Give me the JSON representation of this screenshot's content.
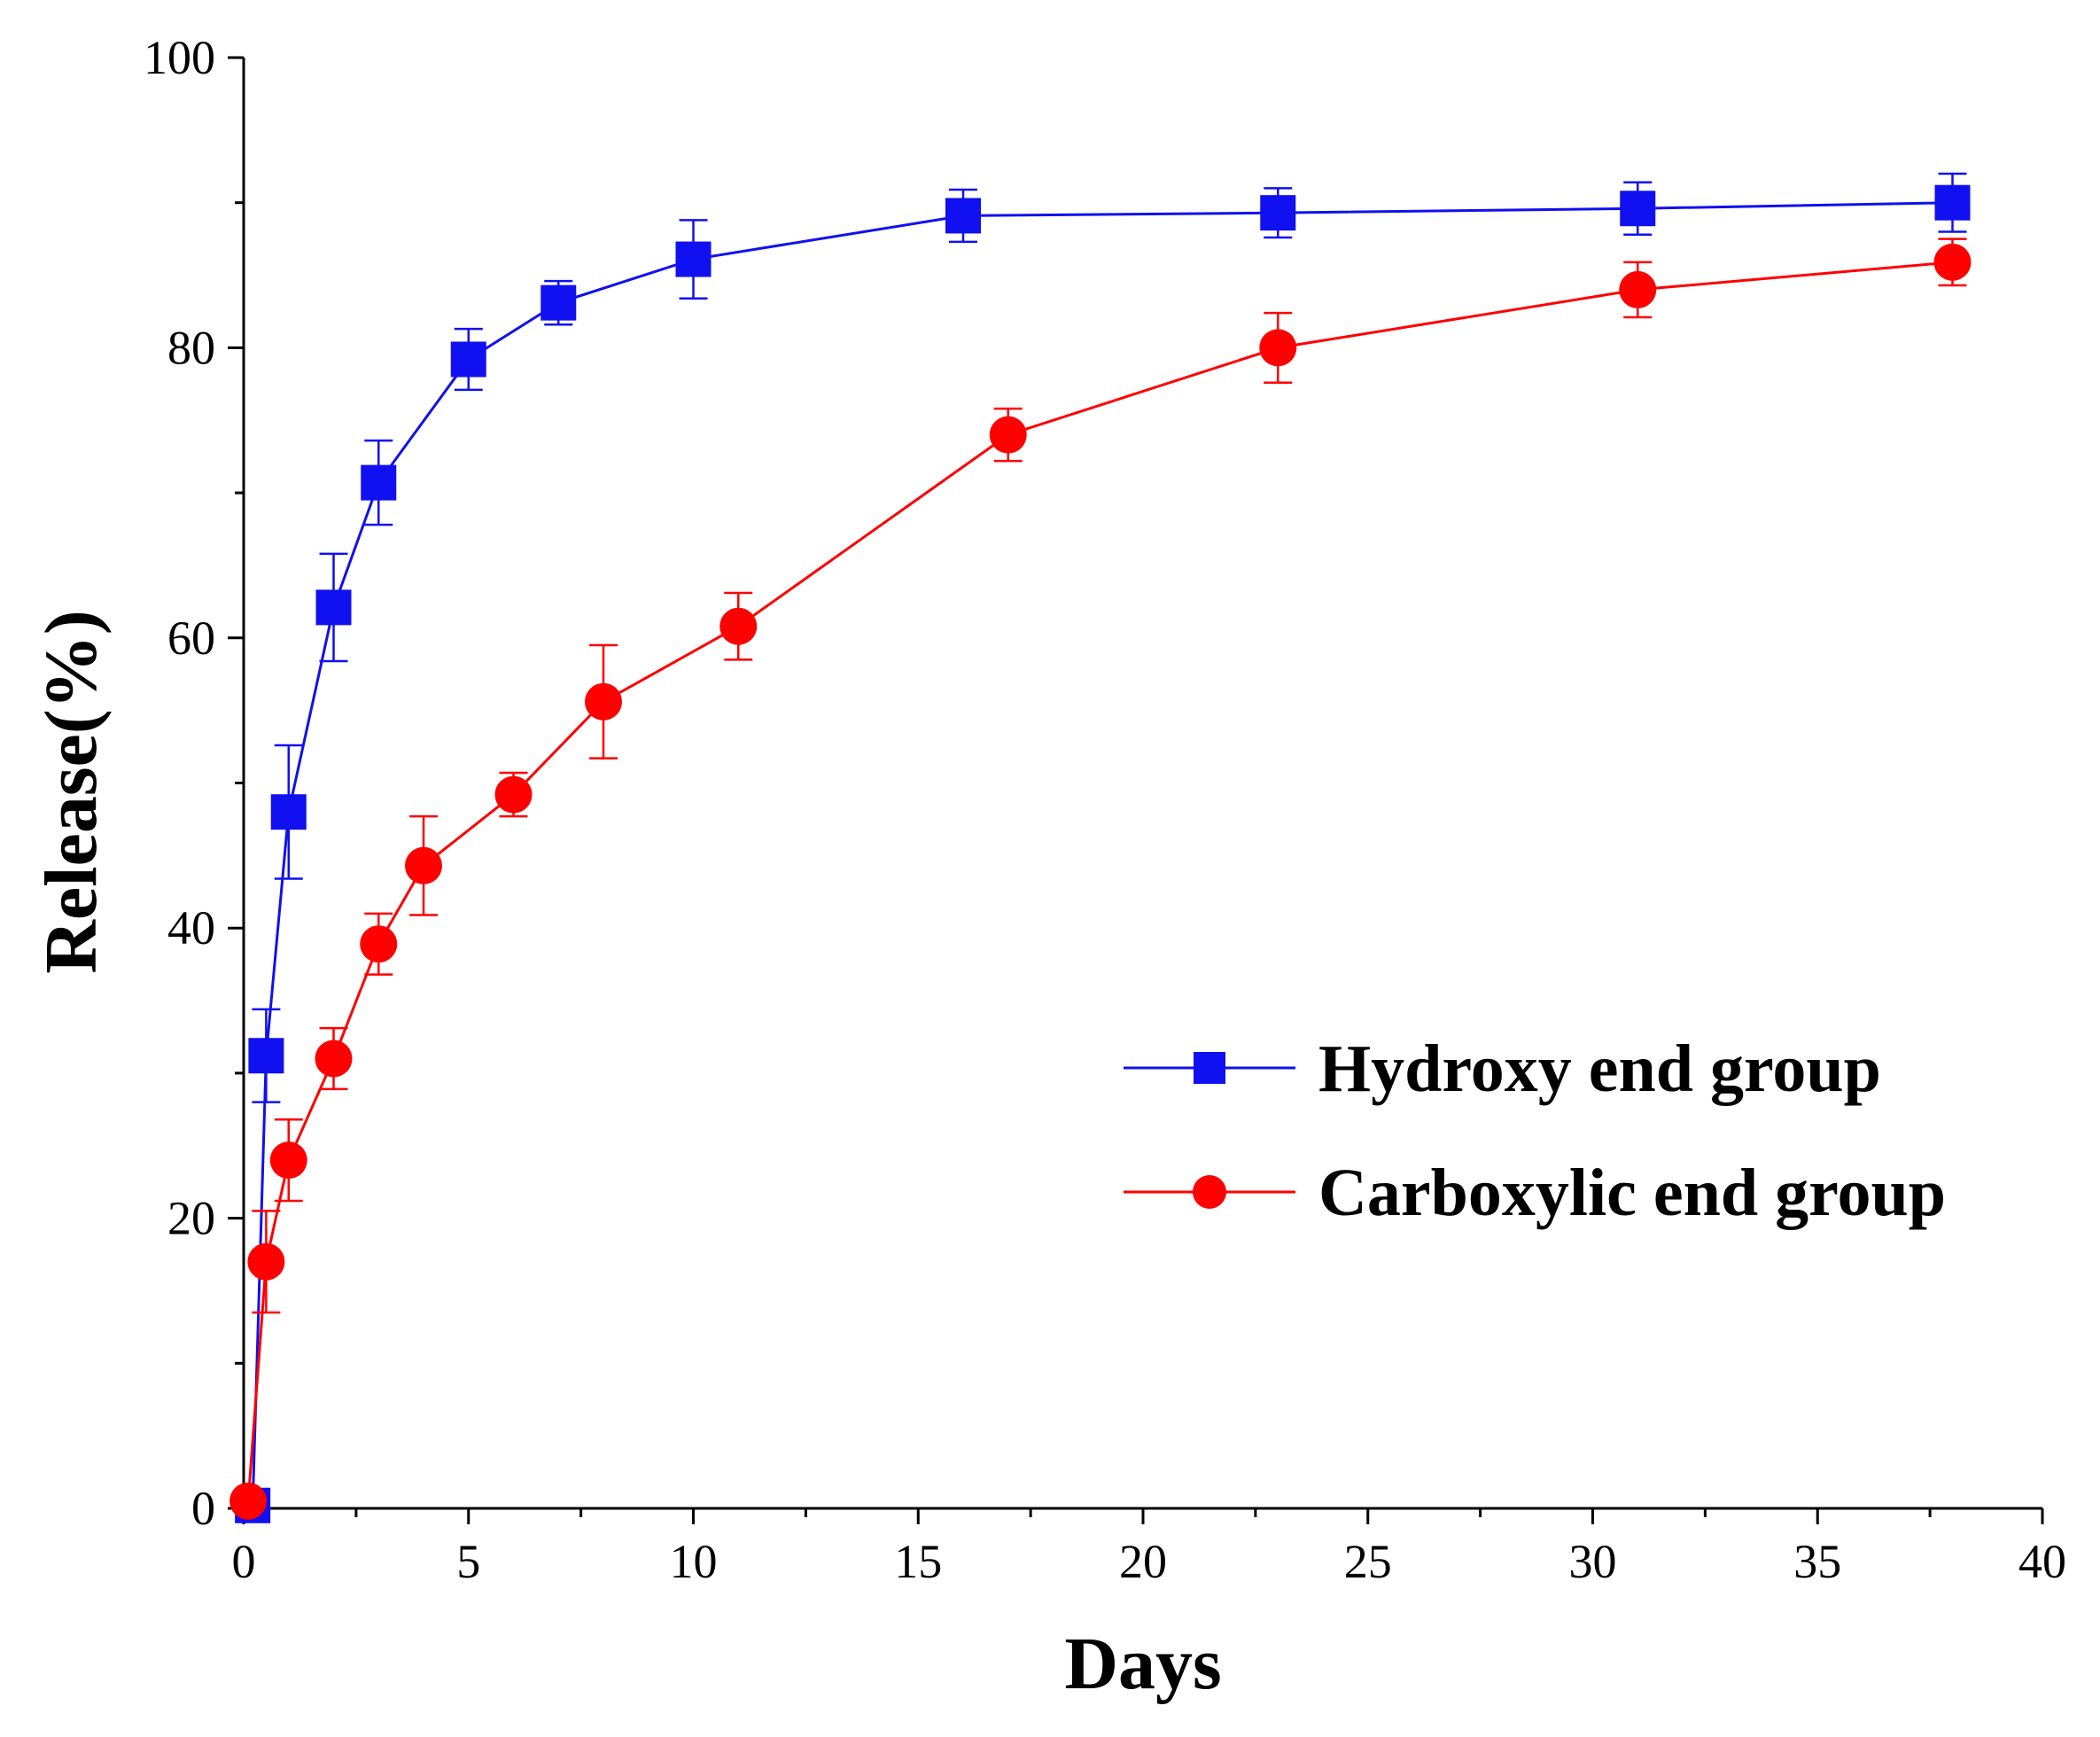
{
  "chart_data": {
    "type": "line",
    "xlabel": "Days",
    "ylabel": "Release(%)",
    "xlim": [
      0,
      40
    ],
    "ylim": [
      0,
      100
    ],
    "x_ticks": [
      0,
      5,
      10,
      15,
      20,
      25,
      30,
      35,
      40
    ],
    "y_ticks": [
      0,
      20,
      40,
      60,
      80,
      100
    ],
    "grid": false,
    "legend_position": "right",
    "series": [
      {
        "name": "Hydroxy end group",
        "color": "#1010f0",
        "marker": "square",
        "x": [
          0.2,
          0.5,
          1,
          2,
          3,
          5,
          7,
          10,
          16,
          23,
          31,
          38
        ],
        "y": [
          0.2,
          31.2,
          48,
          62.1,
          70.7,
          79.2,
          83.1,
          86.1,
          89.1,
          89.3,
          89.6,
          90.0
        ],
        "error": [
          0,
          3.2,
          4.6,
          3.7,
          2.9,
          2.1,
          1.5,
          2.7,
          1.8,
          1.7,
          1.8,
          2.0
        ]
      },
      {
        "name": "Carboxylic end group",
        "color": "#ff0000",
        "marker": "circle",
        "x": [
          0.1,
          0.5,
          1,
          2,
          3,
          4,
          6,
          8,
          11,
          17,
          23,
          31,
          38
        ],
        "y": [
          0.5,
          17,
          24,
          31,
          38.9,
          44.3,
          49.2,
          55.6,
          60.8,
          74,
          80,
          84,
          85.9
        ],
        "error": [
          0,
          3.5,
          2.8,
          2.1,
          2.1,
          3.4,
          1.5,
          3.9,
          2.3,
          1.8,
          2.4,
          1.9,
          1.6
        ]
      }
    ]
  }
}
